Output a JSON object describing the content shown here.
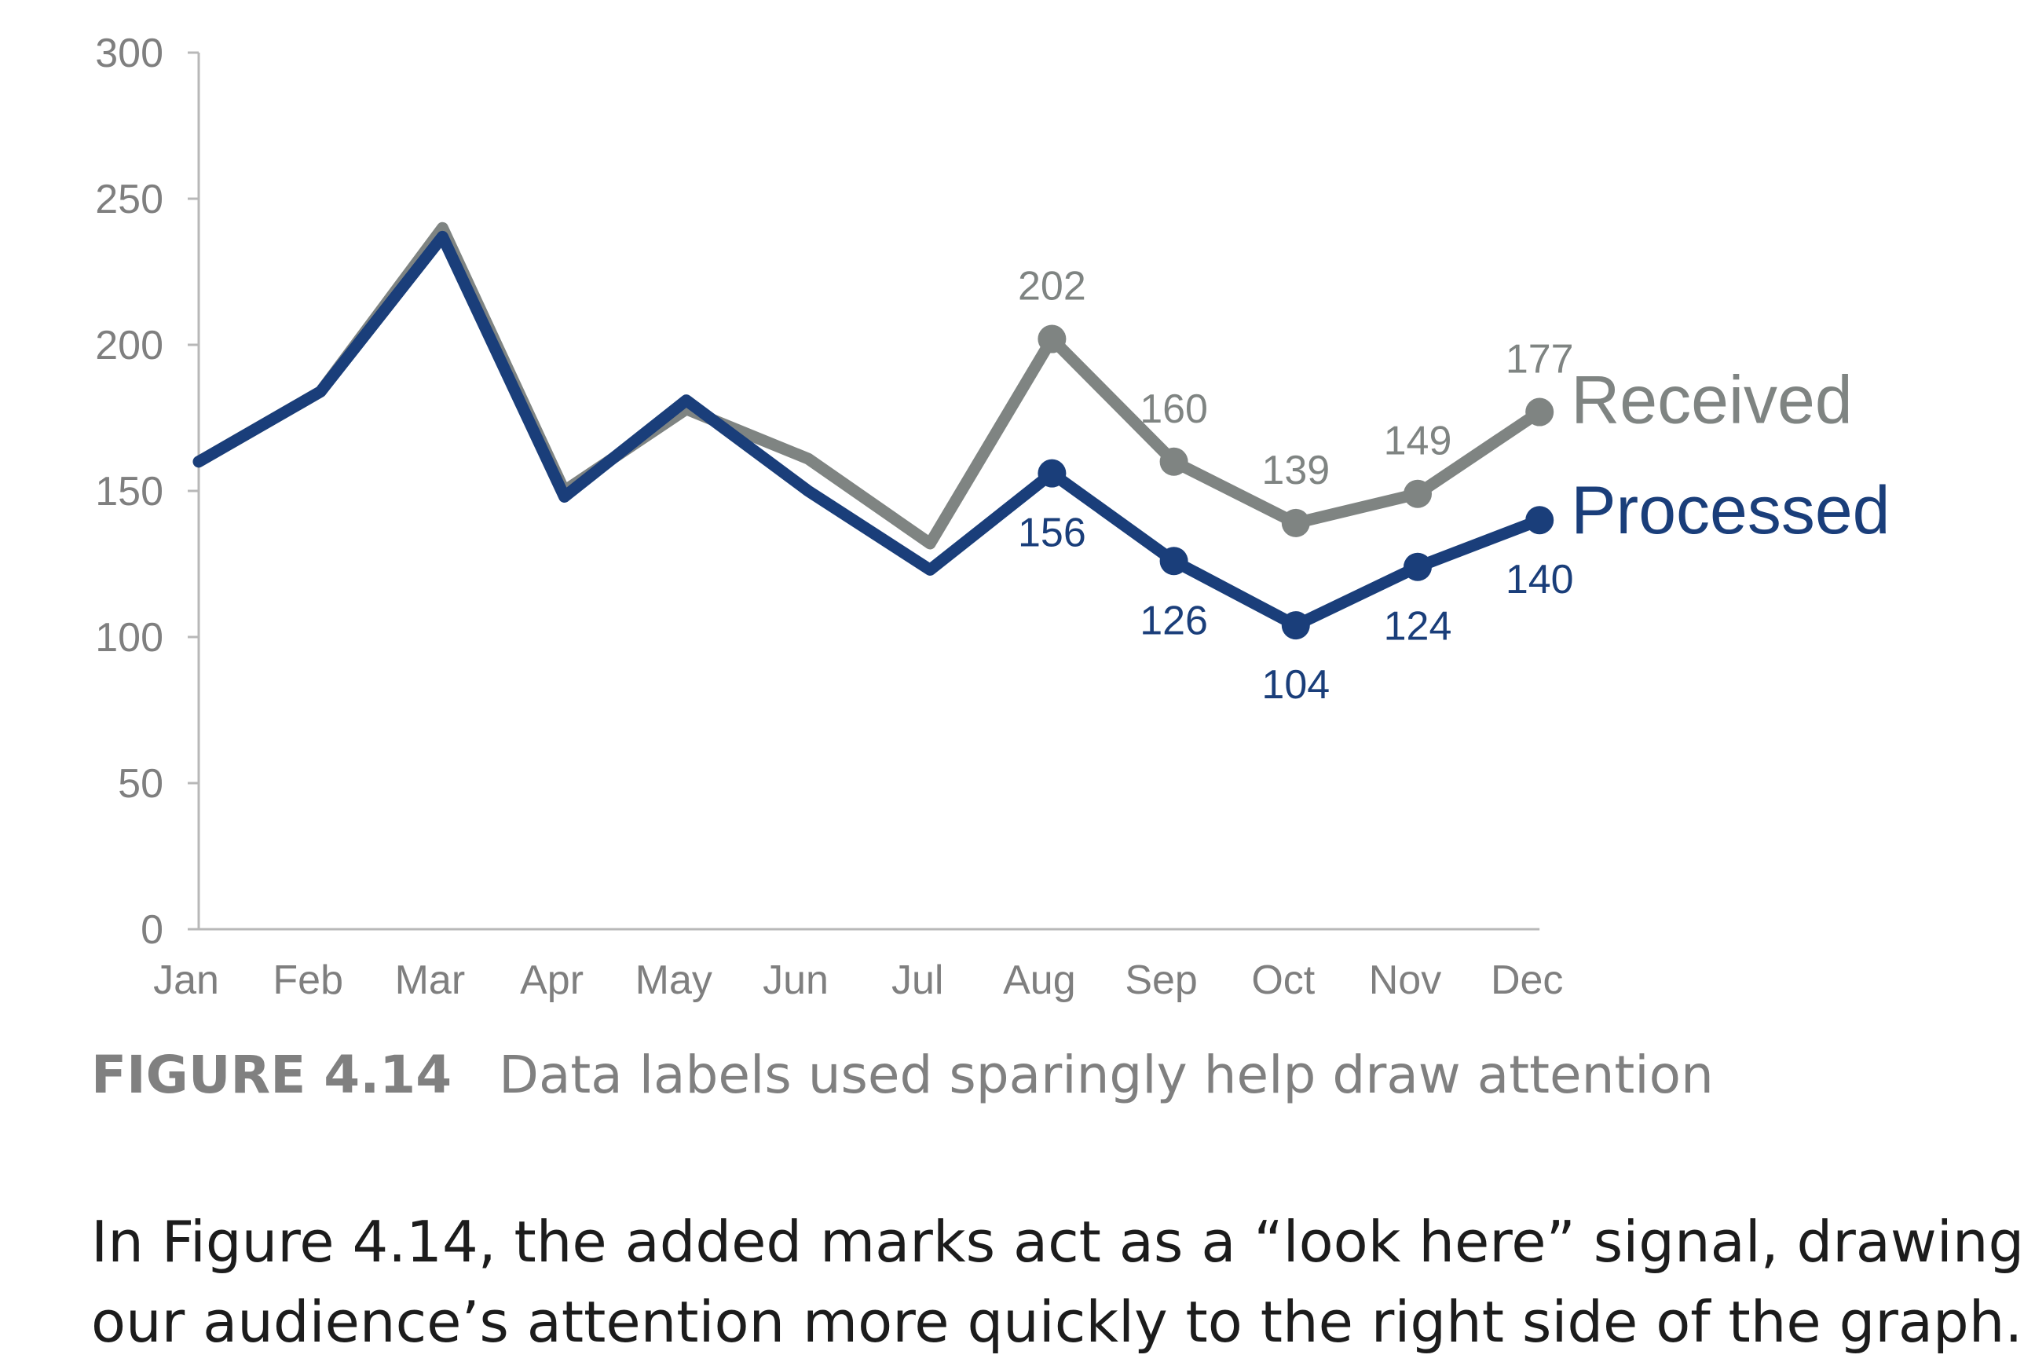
{
  "chart_data": {
    "type": "line",
    "categories": [
      "Jan",
      "Feb",
      "Mar",
      "Apr",
      "May",
      "Jun",
      "Jul",
      "Aug",
      "Sep",
      "Oct",
      "Nov",
      "Dec"
    ],
    "series": [
      {
        "name": "Received",
        "color": "#7f8482",
        "values": [
          160,
          184,
          240,
          150,
          178,
          161,
          132,
          202,
          160,
          139,
          149,
          177
        ],
        "labeled_from_index": 7
      },
      {
        "name": "Processed",
        "color": "#1a3e7a",
        "values": [
          160,
          184,
          237,
          148,
          181,
          150,
          123,
          156,
          126,
          104,
          124,
          140
        ],
        "labeled_from_index": 7
      }
    ],
    "ylim": [
      0,
      300
    ],
    "yticks": [
      "0",
      "50",
      "100",
      "150",
      "200",
      "250",
      "300"
    ],
    "title": "",
    "xlabel": "",
    "ylabel": "",
    "grid": false,
    "legend": "direct labels at right end of lines"
  },
  "caption": {
    "number": "FIGURE 4.14",
    "text": "Data labels used sparingly help draw attention"
  },
  "body": {
    "line1": "In Figure 4.14, the added marks act as a “look here” signal, drawing",
    "line2": "our audience’s attention more quickly to the right side of the graph."
  }
}
